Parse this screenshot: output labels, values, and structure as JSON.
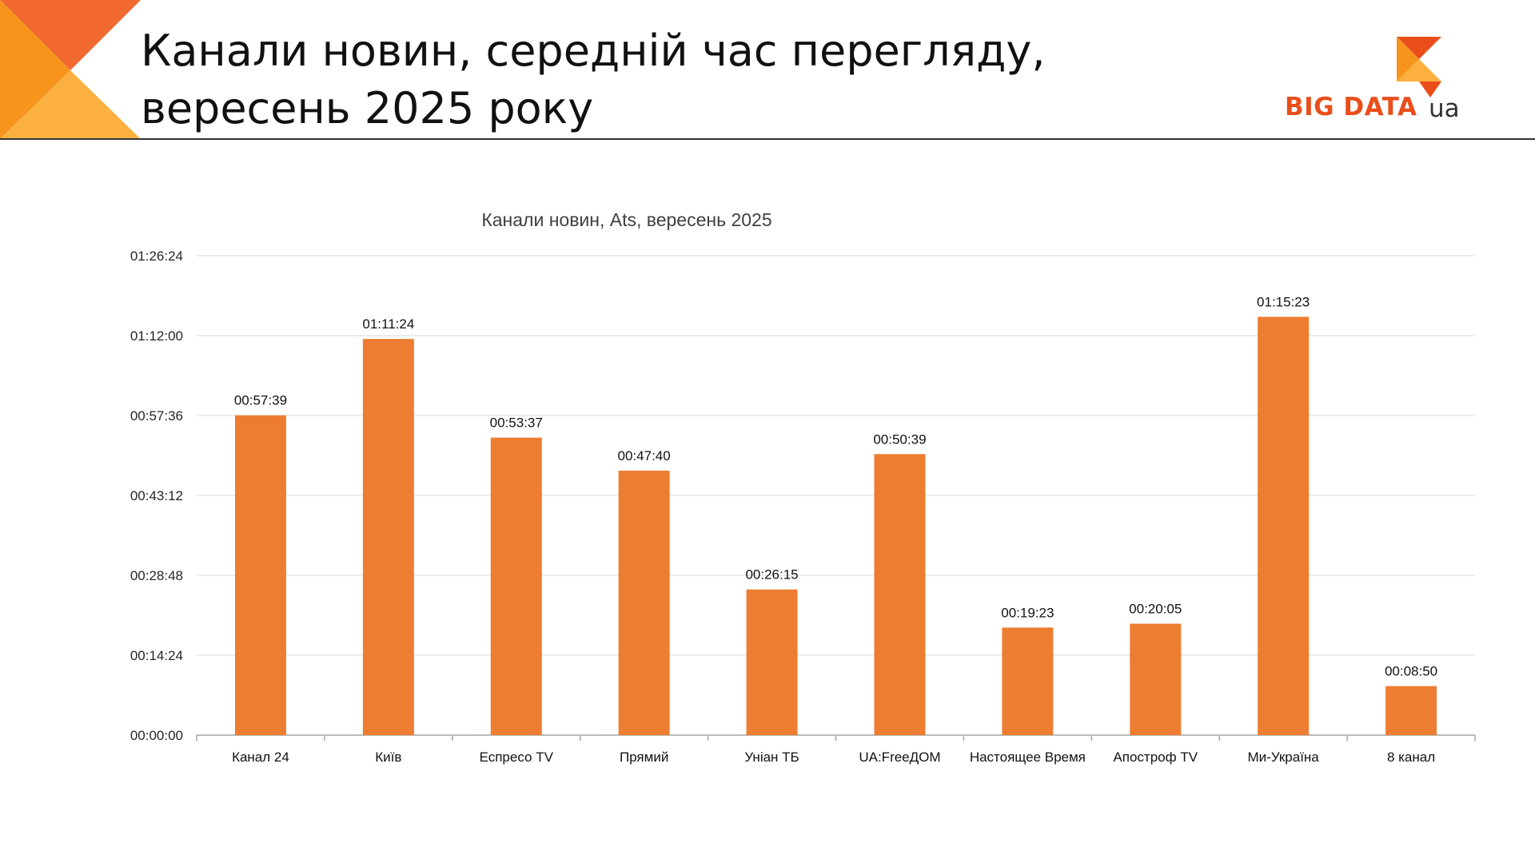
{
  "header": {
    "title_line1": "Канали новин, середній час перегляду,",
    "title_line2": "вересень 2025 року",
    "logo_text": "BIG DATA",
    "logo_suffix": "ua"
  },
  "colors": {
    "bar": "#ed7d31",
    "grid": "#d9d9d9",
    "axis": "#a6a6a6",
    "accent_orange": "#f7941d",
    "accent_red": "#e94e1b",
    "accent_yellow": "#fbb040"
  },
  "chart_data": {
    "type": "bar",
    "title": "Канали новин, Ats, вересень 2025",
    "categories": [
      "Канал 24",
      "Київ",
      "Еспресо TV",
      "Прямий",
      "Уніан ТБ",
      "UA:FreeДОМ",
      "Настоящее Время",
      "Апостроф TV",
      "Ми-Україна",
      "8 канал"
    ],
    "values": [
      "00:57:39",
      "01:11:24",
      "00:53:37",
      "00:47:40",
      "00:26:15",
      "00:50:39",
      "00:19:23",
      "00:20:05",
      "01:15:23",
      "00:08:50"
    ],
    "y_ticks": [
      "00:00:00",
      "00:14:24",
      "00:28:48",
      "00:43:12",
      "00:57:36",
      "01:12:00",
      "01:26:24"
    ],
    "ylim": [
      "00:00:00",
      "01:26:24"
    ],
    "grid": true,
    "legend": "none"
  }
}
